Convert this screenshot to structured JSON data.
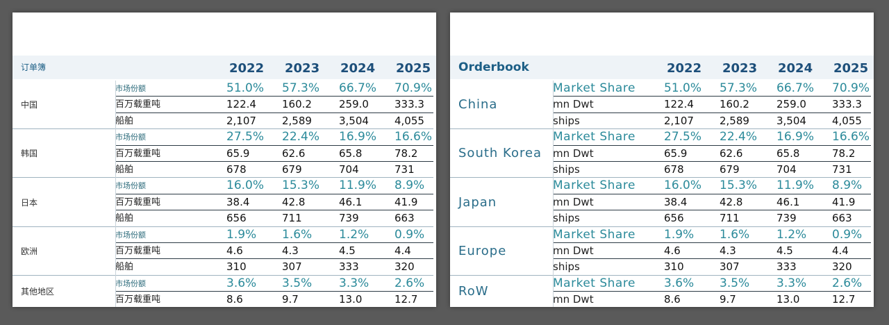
{
  "left": {
    "title": "订单簿",
    "years": [
      "2022",
      "2023",
      "2024",
      "2025"
    ],
    "groups": [
      {
        "name": "中国",
        "rows": [
          {
            "label": "市场份额",
            "values": [
              "51.0%",
              "57.3%",
              "66.7%",
              "70.9%"
            ]
          },
          {
            "label": "百万载重吨",
            "values": [
              "122.4",
              "160.2",
              "259.0",
              "333.3"
            ]
          },
          {
            "label": "船舶",
            "values": [
              "2,107",
              "2,589",
              "3,504",
              "4,055"
            ]
          }
        ]
      },
      {
        "name": "韩国",
        "rows": [
          {
            "label": "市场份额",
            "values": [
              "27.5%",
              "22.4%",
              "16.9%",
              "16.6%"
            ]
          },
          {
            "label": "百万载重吨",
            "values": [
              "65.9",
              "62.6",
              "65.8",
              "78.2"
            ]
          },
          {
            "label": "船舶",
            "values": [
              "678",
              "679",
              "704",
              "731"
            ]
          }
        ]
      },
      {
        "name": "日本",
        "rows": [
          {
            "label": "市场份额",
            "values": [
              "16.0%",
              "15.3%",
              "11.9%",
              "8.9%"
            ]
          },
          {
            "label": "百万载重吨",
            "values": [
              "38.4",
              "42.8",
              "46.1",
              "41.9"
            ]
          },
          {
            "label": "船舶",
            "values": [
              "656",
              "711",
              "739",
              "663"
            ]
          }
        ]
      },
      {
        "name": "欧洲",
        "rows": [
          {
            "label": "市场份额",
            "values": [
              "1.9%",
              "1.6%",
              "1.2%",
              "0.9%"
            ]
          },
          {
            "label": "百万载重吨",
            "values": [
              "4.6",
              "4.3",
              "4.5",
              "4.4"
            ]
          },
          {
            "label": "船舶",
            "values": [
              "310",
              "307",
              "333",
              "320"
            ]
          }
        ]
      },
      {
        "name": "其他地区",
        "rows": [
          {
            "label": "市场份额",
            "values": [
              "3.6%",
              "3.5%",
              "3.3%",
              "2.6%"
            ]
          },
          {
            "label": "百万载重吨",
            "values": [
              "8.6",
              "9.7",
              "13.0",
              "12.7"
            ]
          }
        ]
      }
    ]
  },
  "right": {
    "title": "Orderbook",
    "years": [
      "2022",
      "2023",
      "2024",
      "2025"
    ],
    "groups": [
      {
        "name": "China",
        "rows": [
          {
            "label": "Market Share",
            "values": [
              "51.0%",
              "57.3%",
              "66.7%",
              "70.9%"
            ]
          },
          {
            "label": "mn Dwt",
            "values": [
              "122.4",
              "160.2",
              "259.0",
              "333.3"
            ]
          },
          {
            "label": "ships",
            "values": [
              "2,107",
              "2,589",
              "3,504",
              "4,055"
            ]
          }
        ]
      },
      {
        "name": "South Korea",
        "rows": [
          {
            "label": "Market Share",
            "values": [
              "27.5%",
              "22.4%",
              "16.9%",
              "16.6%"
            ]
          },
          {
            "label": "mn Dwt",
            "values": [
              "65.9",
              "62.6",
              "65.8",
              "78.2"
            ]
          },
          {
            "label": "ships",
            "values": [
              "678",
              "679",
              "704",
              "731"
            ]
          }
        ]
      },
      {
        "name": "Japan",
        "rows": [
          {
            "label": "Market Share",
            "values": [
              "16.0%",
              "15.3%",
              "11.9%",
              "8.9%"
            ]
          },
          {
            "label": "mn Dwt",
            "values": [
              "38.4",
              "42.8",
              "46.1",
              "41.9"
            ]
          },
          {
            "label": "ships",
            "values": [
              "656",
              "711",
              "739",
              "663"
            ]
          }
        ]
      },
      {
        "name": "Europe",
        "rows": [
          {
            "label": "Market Share",
            "values": [
              "1.9%",
              "1.6%",
              "1.2%",
              "0.9%"
            ]
          },
          {
            "label": "mn Dwt",
            "values": [
              "4.6",
              "4.3",
              "4.5",
              "4.4"
            ]
          },
          {
            "label": "ships",
            "values": [
              "310",
              "307",
              "333",
              "320"
            ]
          }
        ]
      },
      {
        "name": "RoW",
        "rows": [
          {
            "label": "Market Share",
            "values": [
              "3.6%",
              "3.5%",
              "3.3%",
              "2.6%"
            ]
          },
          {
            "label": "mn Dwt",
            "values": [
              "8.6",
              "9.7",
              "13.0",
              "12.7"
            ]
          }
        ]
      }
    ]
  }
}
